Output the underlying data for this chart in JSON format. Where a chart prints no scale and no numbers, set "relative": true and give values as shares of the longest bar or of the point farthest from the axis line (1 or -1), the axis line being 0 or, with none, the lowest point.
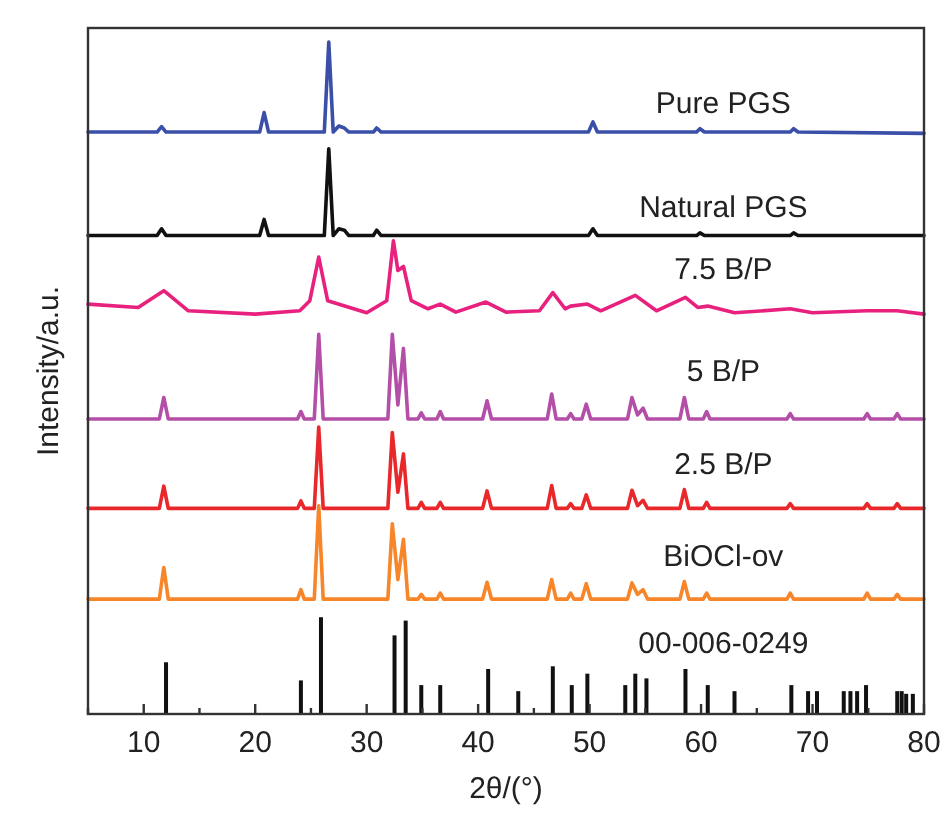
{
  "chart_data": {
    "type": "line",
    "xlabel": "2θ/(°)",
    "ylabel": "Intensity/a.u.",
    "relative": true,
    "grid": false,
    "tick_labels": "x",
    "xlim": [
      5,
      80
    ],
    "xticks": [
      {
        "value": 5,
        "label": null
      },
      10,
      {
        "value": 15,
        "label": null
      },
      20,
      {
        "value": 25,
        "label": null
      },
      30,
      {
        "value": 35,
        "label": null
      },
      40,
      {
        "value": 45,
        "label": null
      },
      50,
      {
        "value": 55,
        "label": null
      },
      60,
      {
        "value": 65,
        "label": null
      },
      70,
      {
        "value": 75,
        "label": null
      },
      80
    ],
    "x": [
      5,
      11.4,
      11.8,
      12.2,
      23.8,
      24.1,
      24.4,
      25.3,
      25.7,
      26.1,
      31.9,
      32.3,
      32.8,
      33.3,
      33.7,
      34.6,
      34.9,
      35.2,
      36.3,
      36.6,
      36.9,
      40.4,
      40.8,
      41.2,
      46.2,
      46.6,
      47.0,
      48.0,
      48.3,
      48.6,
      49.3,
      49.7,
      50.1,
      53.4,
      53.8,
      54.3,
      54.8,
      55.2,
      58.1,
      58.5,
      58.9,
      60.2,
      60.5,
      60.8,
      67.7,
      68,
      68.3,
      74.6,
      74.9,
      75.2,
      77.3,
      77.6,
      77.9,
      80
    ],
    "series": [
      {
        "name": "Pure PGS",
        "color": "#3a4fa8",
        "x": [
          5,
          11.2,
          11.6,
          12.0,
          20.4,
          20.8,
          21.2,
          26.2,
          26.6,
          27.0,
          27.5,
          28.0,
          28.4,
          30.6,
          30.9,
          31.3,
          49.9,
          50.3,
          50.7,
          59.6,
          59.9,
          60.3,
          68.0,
          68.3,
          68.7,
          80
        ],
        "values": [
          0.866,
          0.866,
          0.874,
          0.866,
          0.866,
          0.895,
          0.866,
          0.866,
          1,
          0.866,
          0.875,
          0.872,
          0.866,
          0.866,
          0.872,
          0.866,
          0.866,
          0.881,
          0.866,
          0.866,
          0.871,
          0.866,
          0.866,
          0.871,
          0.866,
          0.864
        ]
      },
      {
        "name": "Natural PGS",
        "color": "#111111",
        "x": [
          5,
          11.2,
          11.6,
          12.0,
          20.4,
          20.8,
          21.2,
          26.2,
          26.6,
          27.0,
          27.5,
          28.0,
          28.4,
          30.6,
          30.9,
          31.3,
          49.9,
          50.3,
          50.7,
          59.6,
          59.9,
          60.3,
          68.0,
          68.3,
          68.7,
          80
        ],
        "values": [
          0.712,
          0.712,
          0.722,
          0.712,
          0.712,
          0.736,
          0.712,
          0.712,
          0.841,
          0.712,
          0.722,
          0.72,
          0.712,
          0.712,
          0.72,
          0.712,
          0.712,
          0.722,
          0.712,
          0.712,
          0.716,
          0.712,
          0.712,
          0.716,
          0.712,
          0.712
        ]
      },
      {
        "name": "7.5 B/P",
        "color": "#e8217f",
        "x": [
          5,
          9.5,
          11.8,
          14,
          20,
          24,
          24.9,
          25.7,
          26.5,
          30,
          31.8,
          32.4,
          32.8,
          33.3,
          34,
          35.5,
          36.6,
          38,
          40.7,
          42.5,
          45.5,
          46.7,
          47.8,
          48.3,
          49.8,
          51,
          54.1,
          56,
          58.6,
          59.7,
          60.6,
          63,
          68,
          70,
          74.9,
          77.6,
          80
        ],
        "values": [
          0.61,
          0.605,
          0.63,
          0.6,
          0.595,
          0.6,
          0.615,
          0.68,
          0.615,
          0.597,
          0.615,
          0.704,
          0.66,
          0.666,
          0.615,
          0.603,
          0.61,
          0.598,
          0.613,
          0.598,
          0.6,
          0.627,
          0.603,
          0.607,
          0.61,
          0.6,
          0.623,
          0.6,
          0.62,
          0.605,
          0.607,
          0.597,
          0.603,
          0.597,
          0.6,
          0.6,
          0.595
        ]
      },
      {
        "name": "5 B/P",
        "color": "#b44fa8",
        "values": [
          0.439,
          0.439,
          0.471,
          0.439,
          0.439,
          0.45,
          0.439,
          0.439,
          0.565,
          0.439,
          0.439,
          0.565,
          0.46,
          0.544,
          0.439,
          0.439,
          0.448,
          0.439,
          0.439,
          0.45,
          0.439,
          0.439,
          0.466,
          0.439,
          0.439,
          0.476,
          0.439,
          0.439,
          0.447,
          0.439,
          0.439,
          0.461,
          0.439,
          0.439,
          0.471,
          0.445,
          0.455,
          0.439,
          0.439,
          0.471,
          0.439,
          0.439,
          0.45,
          0.439,
          0.439,
          0.447,
          0.439,
          0.439,
          0.447,
          0.439,
          0.439,
          0.447,
          0.439,
          0.439
        ]
      },
      {
        "name": "2.5 B/P",
        "color": "#e8282a",
        "values": [
          0.306,
          0.306,
          0.339,
          0.306,
          0.306,
          0.317,
          0.306,
          0.306,
          0.427,
          0.306,
          0.306,
          0.419,
          0.33,
          0.387,
          0.306,
          0.306,
          0.315,
          0.306,
          0.306,
          0.315,
          0.306,
          0.306,
          0.332,
          0.306,
          0.306,
          0.34,
          0.306,
          0.306,
          0.313,
          0.306,
          0.306,
          0.326,
          0.306,
          0.306,
          0.333,
          0.31,
          0.318,
          0.306,
          0.306,
          0.334,
          0.306,
          0.306,
          0.315,
          0.306,
          0.306,
          0.313,
          0.306,
          0.306,
          0.313,
          0.306,
          0.306,
          0.313,
          0.306,
          0.306
        ]
      },
      {
        "name": "BiOCl-ov",
        "color": "#f7862a",
        "values": [
          0.171,
          0.171,
          0.218,
          0.171,
          0.171,
          0.185,
          0.171,
          0.171,
          0.31,
          0.171,
          0.171,
          0.283,
          0.2,
          0.26,
          0.171,
          0.171,
          0.178,
          0.171,
          0.171,
          0.18,
          0.171,
          0.171,
          0.196,
          0.171,
          0.171,
          0.2,
          0.171,
          0.171,
          0.18,
          0.171,
          0.171,
          0.194,
          0.171,
          0.171,
          0.195,
          0.178,
          0.185,
          0.171,
          0.171,
          0.197,
          0.171,
          0.171,
          0.18,
          0.171,
          0.171,
          0.18,
          0.171,
          0.171,
          0.18,
          0.171,
          0.171,
          0.178,
          0.171,
          0.171
        ]
      },
      {
        "name": "00-006-0249",
        "type": "bar",
        "color": "#111111",
        "x": [
          12.0,
          24.1,
          25.9,
          32.5,
          33.5,
          34.9,
          36.6,
          40.9,
          43.6,
          46.7,
          48.4,
          49.8,
          53.2,
          54.1,
          55.1,
          58.6,
          60.6,
          63.0,
          68.1,
          69.6,
          70.4,
          72.8,
          73.4,
          74.0,
          74.8,
          77.6,
          78.0,
          78.4,
          79.0
        ],
        "values": [
          0.077,
          0.05,
          0.144,
          0.117,
          0.139,
          0.043,
          0.043,
          0.067,
          0.034,
          0.071,
          0.043,
          0.06,
          0.043,
          0.06,
          0.053,
          0.067,
          0.043,
          0.034,
          0.043,
          0.034,
          0.034,
          0.034,
          0.034,
          0.034,
          0.043,
          0.034,
          0.034,
          0.03,
          0.03
        ]
      }
    ]
  }
}
